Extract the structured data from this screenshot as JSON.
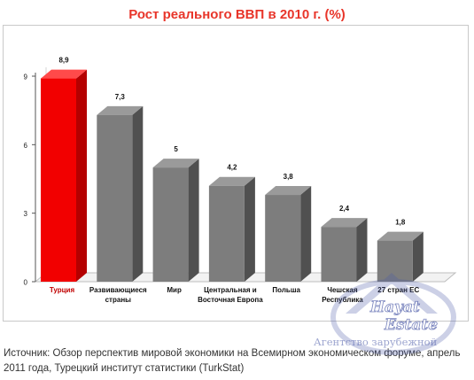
{
  "colors": {
    "title": "#e8352a",
    "highlight_front": "#f20000",
    "highlight_side": "#b40000",
    "highlight_top": "#ff4a4a",
    "bar_front": "#7d7d7d",
    "bar_side": "#505050",
    "bar_top": "#9a9a9a",
    "highlight_label": "#c00000",
    "watermark": "#4b5aa8"
  },
  "chart_data": {
    "type": "bar",
    "title": "Рост реального ВВП в 2010 г. (%)",
    "xlabel": "",
    "ylabel": "",
    "ylim": [
      0,
      9
    ],
    "yticks": [
      0,
      3,
      6,
      9
    ],
    "grid": false,
    "legend": "none",
    "three_d": true,
    "highlight_index": 0,
    "categories": [
      [
        "Турция"
      ],
      [
        "Развивающиеся",
        "страны"
      ],
      [
        "Мир"
      ],
      [
        "Центральная и",
        "Восточная Европа"
      ],
      [
        "Польша"
      ],
      [
        "Чешская",
        "Республика"
      ],
      [
        "27 стран ЕС"
      ]
    ],
    "values": [
      8.9,
      7.3,
      5,
      4.2,
      3.8,
      2.4,
      1.8
    ],
    "value_labels": [
      "8,9",
      "7,3",
      "5",
      "4,2",
      "3,8",
      "2,4",
      "1,8"
    ]
  },
  "source": {
    "text": "Источник: Обзор перспектив мировой экономики на Всемирном экономическом форуме, апрель 2011 года, Турецкий институт статистики (TurkStat)"
  },
  "watermark": {
    "line1": "Hayat",
    "line2": "Estate",
    "tagline": "Агентство зарубежной"
  }
}
